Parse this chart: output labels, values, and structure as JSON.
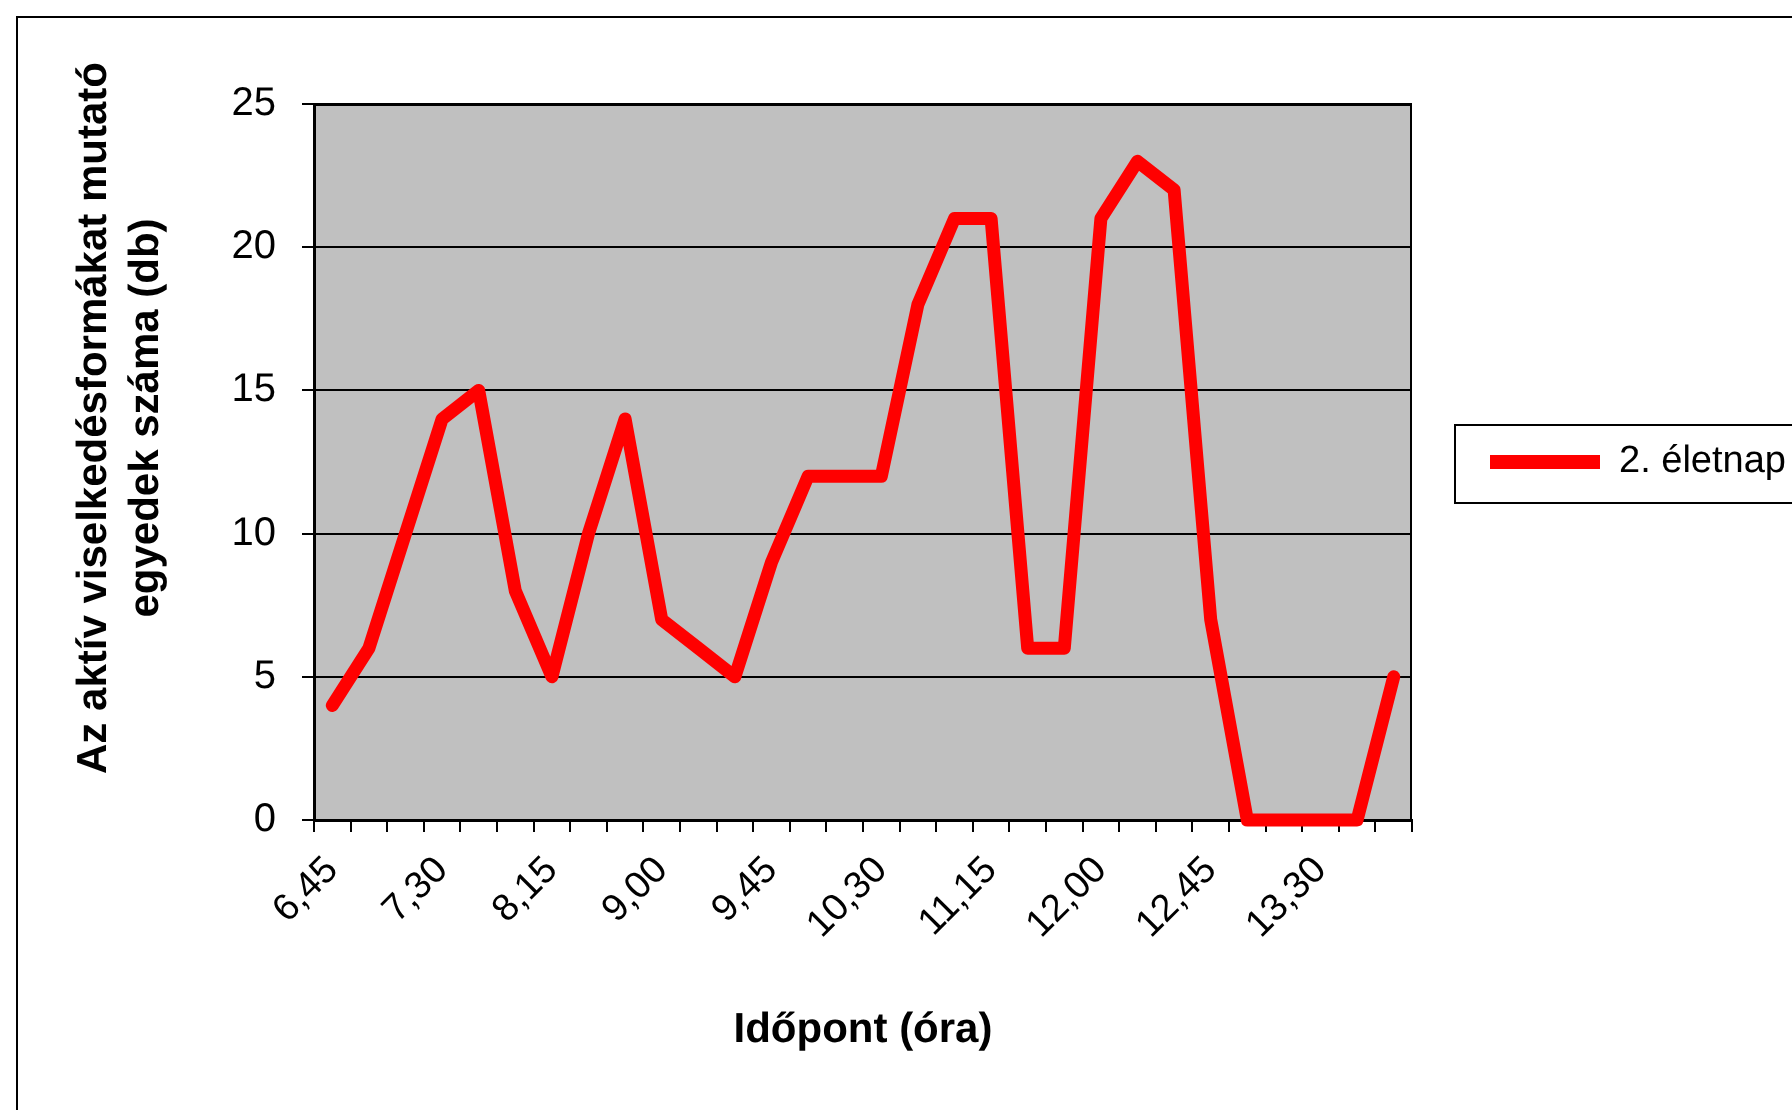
{
  "chart_data": {
    "type": "line",
    "xlabel": "Időpont (óra)",
    "ylabel": "Az aktív viselkedésformákat mutató egyedek száma (db)",
    "categories": [
      "6,45",
      null,
      null,
      "7,30",
      null,
      null,
      "8,15",
      null,
      null,
      "9,00",
      null,
      null,
      "9,45",
      null,
      null,
      "10,30",
      null,
      null,
      "11,15",
      null,
      null,
      "12,00",
      null,
      null,
      "12,45",
      null,
      null,
      "13,30",
      null,
      null
    ],
    "series": [
      {
        "name": "2. életnap",
        "color": "#ff0000",
        "values": [
          4,
          6,
          10,
          14,
          15,
          8,
          5,
          10,
          14,
          7,
          6,
          5,
          9,
          12,
          12,
          12,
          18,
          21,
          21,
          6,
          6,
          21,
          23,
          22,
          7,
          0,
          0,
          0,
          0,
          5
        ]
      }
    ],
    "ylim": [
      0,
      25
    ],
    "yticks": [
      0,
      5,
      10,
      15,
      20,
      25
    ],
    "grid": "y",
    "legend": "right",
    "marker": "none",
    "line_style": "solid"
  }
}
